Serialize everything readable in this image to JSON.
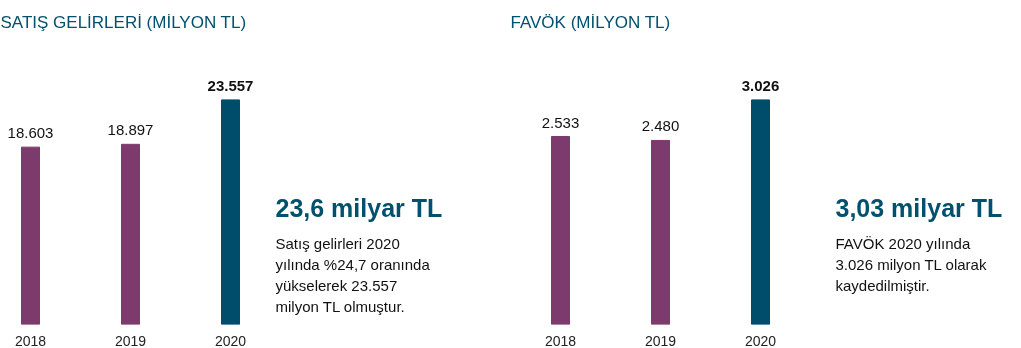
{
  "chart_data": [
    {
      "type": "bar",
      "title": "SATIŞ GELİRLERİ (MİLYON TL)",
      "categories": [
        "2018",
        "2019",
        "2020"
      ],
      "values": [
        18603,
        18897,
        23557
      ],
      "colors": [
        "#7d3a6c",
        "#7d3a6c",
        "#004d6b"
      ],
      "value_labels": [
        "18.603",
        "18.897",
        "23.557"
      ],
      "grid": false,
      "annotations": [
        "23,6 milyar TL",
        "Satış gelirleri 2020 yılında %24,7 oranında yükselerek 23.557 milyon TL olmuştur."
      ]
    },
    {
      "type": "bar",
      "title": "FAVÖK (MİLYON TL)",
      "categories": [
        "2018",
        "2019",
        "2020"
      ],
      "values": [
        2533,
        2480,
        3026
      ],
      "colors": [
        "#7d3a6c",
        "#7d3a6c",
        "#004d6b"
      ],
      "value_labels": [
        "2.533",
        "2.480",
        "3.026"
      ],
      "grid": false,
      "annotations": [
        "3,03 milyar TL",
        "FAVÖK 2020 yılında 3.026 milyon TL olarak kaydedilmiştir."
      ]
    }
  ]
}
